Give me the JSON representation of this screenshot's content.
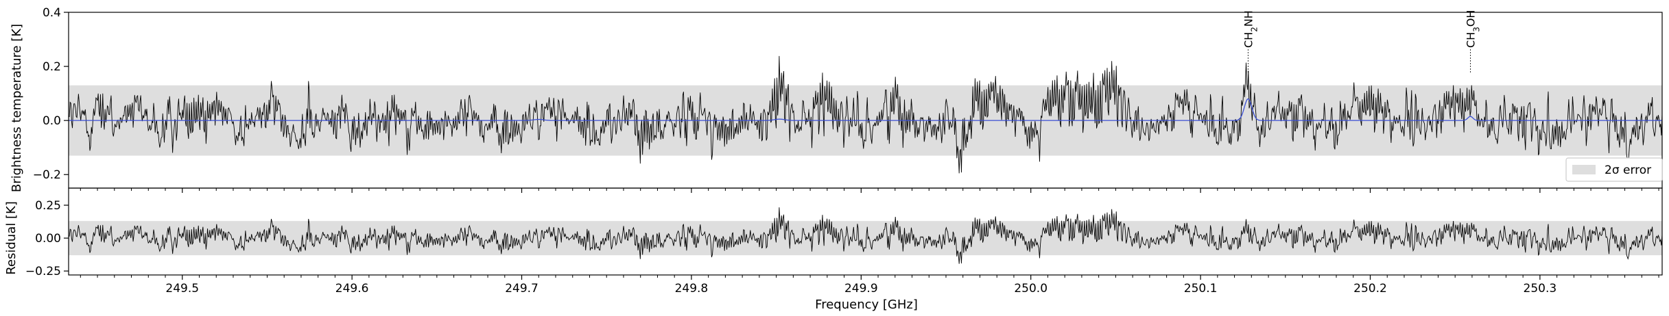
{
  "chart_data": [
    {
      "type": "line",
      "panel": "upper",
      "title": "",
      "ylabel": "Brightness temperature [K]",
      "xlim": [
        249.433,
        250.372
      ],
      "ylim": [
        -0.25,
        0.4
      ],
      "x_ticks": [
        249.5,
        249.6,
        249.7,
        249.8,
        249.9,
        250.0,
        250.1,
        250.2,
        250.3
      ],
      "x_tick_labels": [],
      "y_ticks": [
        -0.2,
        0.0,
        0.2,
        0.4
      ],
      "y_tick_labels": [
        "−0.2",
        "0.0",
        "0.2",
        "0.4"
      ],
      "error_band": {
        "low": -0.13,
        "high": 0.13,
        "color": "#dedede",
        "label": "2σ error"
      },
      "legend_position": "lower-right",
      "series": [
        {
          "kind": "observed-spectrum",
          "color": "#000000",
          "anchors": [
            [
              249.433,
              0.06
            ],
            [
              249.442,
              0.03
            ],
            [
              249.443,
              -0.08
            ],
            [
              249.452,
              0.17
            ],
            [
              249.46,
              -0.06
            ],
            [
              249.47,
              0.1
            ],
            [
              249.487,
              -0.12
            ],
            [
              249.506,
              0.15
            ],
            [
              249.525,
              0.09
            ],
            [
              249.535,
              -0.12
            ],
            [
              249.553,
              0.15
            ],
            [
              249.57,
              -0.13
            ],
            [
              249.595,
              0.1
            ],
            [
              249.6,
              -0.16
            ],
            [
              249.625,
              0.13
            ],
            [
              249.645,
              -0.11
            ],
            [
              249.668,
              0.1
            ],
            [
              249.69,
              -0.14
            ],
            [
              249.72,
              0.11
            ],
            [
              249.74,
              -0.13
            ],
            [
              249.765,
              0.08
            ],
            [
              249.77,
              -0.2
            ],
            [
              249.8,
              0.12
            ],
            [
              249.82,
              -0.14
            ],
            [
              249.846,
              0.08
            ],
            [
              249.851,
              0.28
            ],
            [
              249.856,
              0.19
            ],
            [
              249.862,
              -0.08
            ],
            [
              249.878,
              0.24
            ],
            [
              249.9,
              -0.12
            ],
            [
              249.92,
              0.18
            ],
            [
              249.945,
              -0.12
            ],
            [
              249.95,
              0.1
            ],
            [
              249.958,
              -0.23
            ],
            [
              249.96,
              -0.25
            ],
            [
              249.966,
              0.21
            ],
            [
              249.985,
              0.14
            ],
            [
              250.0,
              -0.14
            ],
            [
              250.012,
              0.2
            ],
            [
              250.035,
              0.2
            ],
            [
              250.05,
              0.27
            ],
            [
              250.06,
              -0.09
            ],
            [
              250.09,
              0.13
            ],
            [
              250.11,
              -0.12
            ],
            [
              250.128,
              0.16
            ],
            [
              250.135,
              -0.1
            ],
            [
              250.155,
              0.13
            ],
            [
              250.18,
              -0.12
            ],
            [
              250.2,
              0.2
            ],
            [
              250.225,
              -0.1
            ],
            [
              250.245,
              0.13
            ],
            [
              250.259,
              0.16
            ],
            [
              250.27,
              -0.09
            ],
            [
              250.29,
              0.1
            ],
            [
              250.31,
              -0.12
            ],
            [
              250.33,
              0.09
            ],
            [
              250.35,
              -0.13
            ],
            [
              250.372,
              0.05
            ]
          ],
          "noise_sigma": 0.065
        },
        {
          "kind": "model-fit",
          "color": "#3a4fd4",
          "baseline": 0.0,
          "peaks": [
            {
              "center": 250.128,
              "amplitude": 0.08,
              "width": 0.0022
            },
            {
              "center": 250.259,
              "amplitude": 0.015,
              "width": 0.0015
            },
            {
              "center": 249.852,
              "amplitude": 0.005,
              "width": 0.003
            },
            {
              "center": 249.71,
              "amplitude": 0.004,
              "width": 0.003
            }
          ]
        }
      ],
      "annotations": [
        {
          "html": "CH<tspan baseline-shift=\"sub\" font-size=\"12\">2</tspan>NH",
          "text": "CH2NH",
          "x": 250.128
        },
        {
          "html": "CH<tspan baseline-shift=\"sub\" font-size=\"12\">3</tspan>OH",
          "text": "CH3OH",
          "x": 250.259
        }
      ]
    },
    {
      "type": "line",
      "panel": "lower",
      "title": "",
      "xlabel": "Frequency [GHz]",
      "ylabel": "Residual [K]",
      "xlim": [
        249.433,
        250.372
      ],
      "ylim": [
        -0.28,
        0.38
      ],
      "x_ticks": [
        249.5,
        249.6,
        249.7,
        249.8,
        249.9,
        250.0,
        250.1,
        250.2,
        250.3
      ],
      "x_tick_labels": [
        "249.5",
        "249.6",
        "249.7",
        "249.8",
        "249.9",
        "250.0",
        "250.1",
        "250.2",
        "250.3"
      ],
      "y_ticks": [
        -0.25,
        0.0,
        0.25
      ],
      "y_tick_labels": [
        "−0.25",
        "0.00",
        "0.25"
      ],
      "error_band": {
        "low": -0.13,
        "high": 0.13,
        "color": "#dedede"
      },
      "series": [
        {
          "kind": "residual",
          "color": "#000000",
          "derived_from": "observed-spectrum minus model-fit"
        }
      ]
    }
  ],
  "legend": {
    "label": "2σ error",
    "swatch_color": "#dedede"
  }
}
